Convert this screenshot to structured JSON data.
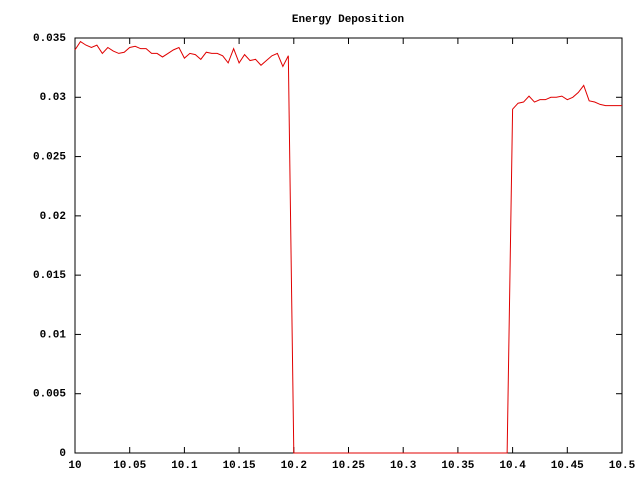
{
  "chart_data": {
    "type": "line",
    "title": "Energy Deposition",
    "x": [
      10,
      10.005,
      10.01,
      10.015,
      10.02,
      10.025,
      10.03,
      10.035,
      10.04,
      10.045,
      10.05,
      10.055,
      10.06,
      10.065,
      10.07,
      10.075,
      10.08,
      10.085,
      10.09,
      10.095,
      10.1,
      10.105,
      10.11,
      10.115,
      10.12,
      10.125,
      10.13,
      10.135,
      10.14,
      10.145,
      10.15,
      10.155,
      10.16,
      10.165,
      10.17,
      10.175,
      10.18,
      10.185,
      10.19,
      10.195,
      10.2,
      10.205,
      10.21,
      10.215,
      10.22,
      10.225,
      10.23,
      10.235,
      10.24,
      10.245,
      10.25,
      10.255,
      10.26,
      10.265,
      10.27,
      10.275,
      10.28,
      10.285,
      10.29,
      10.295,
      10.3,
      10.305,
      10.31,
      10.315,
      10.32,
      10.325,
      10.33,
      10.335,
      10.34,
      10.345,
      10.35,
      10.355,
      10.36,
      10.365,
      10.37,
      10.375,
      10.38,
      10.385,
      10.39,
      10.395,
      10.4,
      10.405,
      10.41,
      10.415,
      10.42,
      10.425,
      10.43,
      10.435,
      10.44,
      10.445,
      10.45,
      10.455,
      10.46,
      10.465,
      10.47,
      10.475,
      10.48,
      10.485,
      10.49,
      10.495,
      10.5
    ],
    "series": [
      {
        "color": "#e00000",
        "values": [
          0.034,
          0.0347,
          0.0344,
          0.0342,
          0.0344,
          0.0337,
          0.0342,
          0.0339,
          0.0337,
          0.0338,
          0.0342,
          0.0343,
          0.0341,
          0.0341,
          0.0337,
          0.0337,
          0.0334,
          0.0337,
          0.034,
          0.0342,
          0.0333,
          0.0337,
          0.0336,
          0.0332,
          0.0338,
          0.0337,
          0.0337,
          0.0335,
          0.0329,
          0.0341,
          0.0329,
          0.0336,
          0.0331,
          0.0332,
          0.0327,
          0.0331,
          0.0335,
          0.0337,
          0.0326,
          0.0335,
          0,
          0,
          0,
          0,
          0,
          0,
          0,
          0,
          0,
          0,
          0,
          0,
          0,
          0,
          0,
          0,
          0,
          0,
          0,
          0,
          0,
          0,
          0,
          0,
          0,
          0,
          0,
          0,
          0,
          0,
          0,
          0,
          0,
          0,
          0,
          0,
          0,
          0,
          0,
          0,
          0.029,
          0.0295,
          0.0296,
          0.0301,
          0.0296,
          0.0298,
          0.0298,
          0.03,
          0.03,
          0.0301,
          0.0298,
          0.03,
          0.0304,
          0.031,
          0.0297,
          0.0296,
          0.0294,
          0.0293,
          0.0293,
          0.0293,
          0.0293
        ]
      }
    ],
    "xlim": [
      10,
      10.5
    ],
    "xticks": [
      10,
      10.05,
      10.1,
      10.15,
      10.2,
      10.25,
      10.3,
      10.35,
      10.4,
      10.45,
      10.5
    ],
    "ylim": [
      0,
      0.035
    ],
    "yticks": [
      0,
      0.005,
      0.01,
      0.015,
      0.02,
      0.025,
      0.03,
      0.035
    ],
    "grid": false
  }
}
